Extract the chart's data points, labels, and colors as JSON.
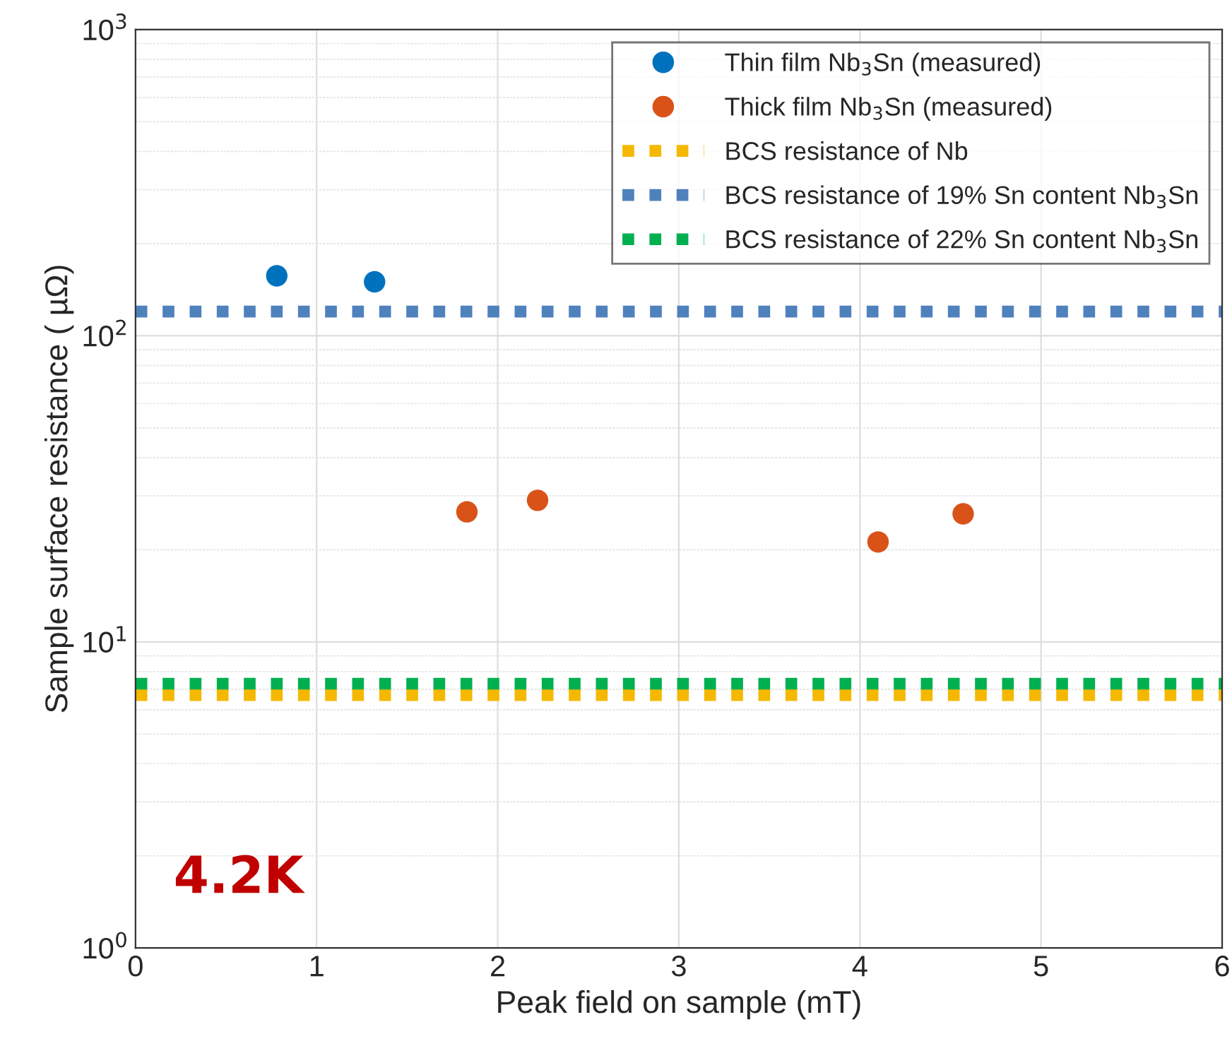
{
  "chart_data": {
    "type": "scatter",
    "xlabel": "Peak field on sample (mT)",
    "ylabel": "Sample surface resistance ( µΩ)",
    "annotations": [
      "4.2K"
    ],
    "log": "y",
    "xlim": [
      0,
      6
    ],
    "xticks": [
      0,
      1,
      2,
      3,
      4,
      5,
      6
    ],
    "ylim": [
      1,
      1000
    ],
    "yticks": [
      {
        "value": 1,
        "label": "10$^{0}$"
      },
      {
        "value": 10,
        "label": "10$^{1}$"
      },
      {
        "value": 100,
        "label": "10$^{2}$"
      },
      {
        "value": 1000,
        "label": "10$^{3}$"
      }
    ],
    "grid": true,
    "legend": "top right",
    "series": [
      {
        "name": "Thin film Nb$_{3}$Sn (measured)",
        "marker": "circle",
        "color": "#0072bd",
        "x": [
          0.78,
          1.32
        ],
        "values": [
          157,
          150
        ]
      },
      {
        "name": "Thick film Nb$_{3}$Sn (measured)",
        "marker": "circle",
        "color": "#d95319",
        "x": [
          1.83,
          2.22,
          4.1,
          4.57
        ],
        "values": [
          26.6,
          29,
          21.2,
          26.2
        ]
      },
      {
        "name": "BCS resistance of Nb",
        "type": "line",
        "line_style": "dotted",
        "color": "#f5b800",
        "x": [
          0,
          6
        ],
        "values": [
          6.7,
          6.7
        ]
      },
      {
        "name": "BCS resistance of 19% Sn content Nb$_{3}$Sn",
        "type": "line",
        "line_style": "dotted",
        "color": "#4f81bd",
        "x": [
          0,
          6
        ],
        "values": [
          120,
          120
        ]
      },
      {
        "name": "BCS resistance of 22% Sn content Nb$_{3}$Sn",
        "type": "line",
        "line_style": "dotted",
        "color": "#00b050",
        "x": [
          0,
          6
        ],
        "values": [
          7.3,
          7.3
        ]
      }
    ]
  }
}
